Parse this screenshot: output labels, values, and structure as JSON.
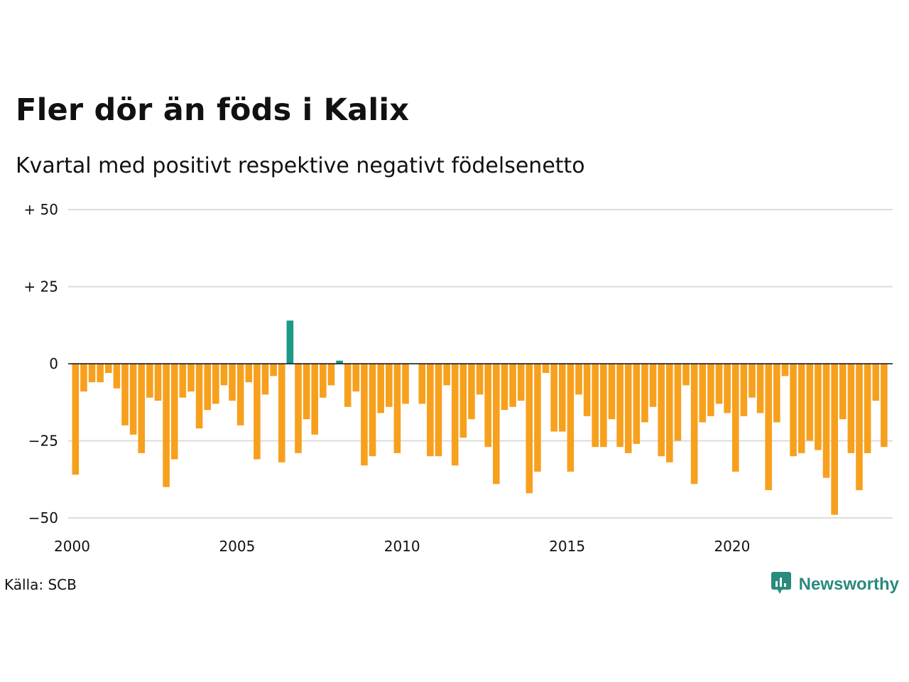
{
  "title": "Fler dör än föds i Kalix",
  "subtitle": "Kvartal med positivt respektive negativt födelsenetto",
  "source": "Källa: SCB",
  "brand": "Newsworthy",
  "logo_icon": "newsworthy-logo-icon",
  "colors": {
    "negative": "#f7a01e",
    "positive": "#1a9a87",
    "grid": "#dcdcdc",
    "zero_line": "#111111",
    "brand": "#2a8a7c"
  },
  "chart_data": {
    "type": "bar",
    "x_unit": "quarter",
    "x_start": "2000 Q1",
    "ylim": [
      -50,
      50
    ],
    "yticks": [
      {
        "value": 50,
        "label": "+ 50"
      },
      {
        "value": 25,
        "label": "+ 25"
      },
      {
        "value": 0,
        "label": "0"
      },
      {
        "value": -25,
        "label": "−25"
      },
      {
        "value": -50,
        "label": "−50"
      }
    ],
    "xticks": [
      "2000",
      "2005",
      "2010",
      "2015",
      "2020"
    ],
    "grid": true,
    "values": [
      -36,
      -9,
      -6,
      -6,
      -3,
      -8,
      -20,
      -23,
      -29,
      -11,
      -12,
      -40,
      -31,
      -11,
      -9,
      -21,
      -15,
      -13,
      -7,
      -12,
      -20,
      -6,
      -31,
      -10,
      -4,
      -32,
      14,
      -29,
      -18,
      -23,
      -11,
      -7,
      1,
      -14,
      -9,
      -33,
      -30,
      -16,
      -14,
      -29,
      -13,
      0,
      -13,
      -30,
      -30,
      -7,
      -33,
      -24,
      -18,
      -10,
      -27,
      -39,
      -15,
      -14,
      -12,
      -42,
      -35,
      -3,
      -22,
      -22,
      -35,
      -10,
      -17,
      -27,
      -27,
      -18,
      -27,
      -29,
      -26,
      -19,
      -14,
      -30,
      -32,
      -25,
      -7,
      -39,
      -19,
      -17,
      -13,
      -16,
      -35,
      -17,
      -11,
      -16,
      -41,
      -19,
      -4,
      -30,
      -29,
      -25,
      -28,
      -37,
      -49,
      -18,
      -29,
      -41,
      -29,
      -12,
      -27
    ]
  }
}
